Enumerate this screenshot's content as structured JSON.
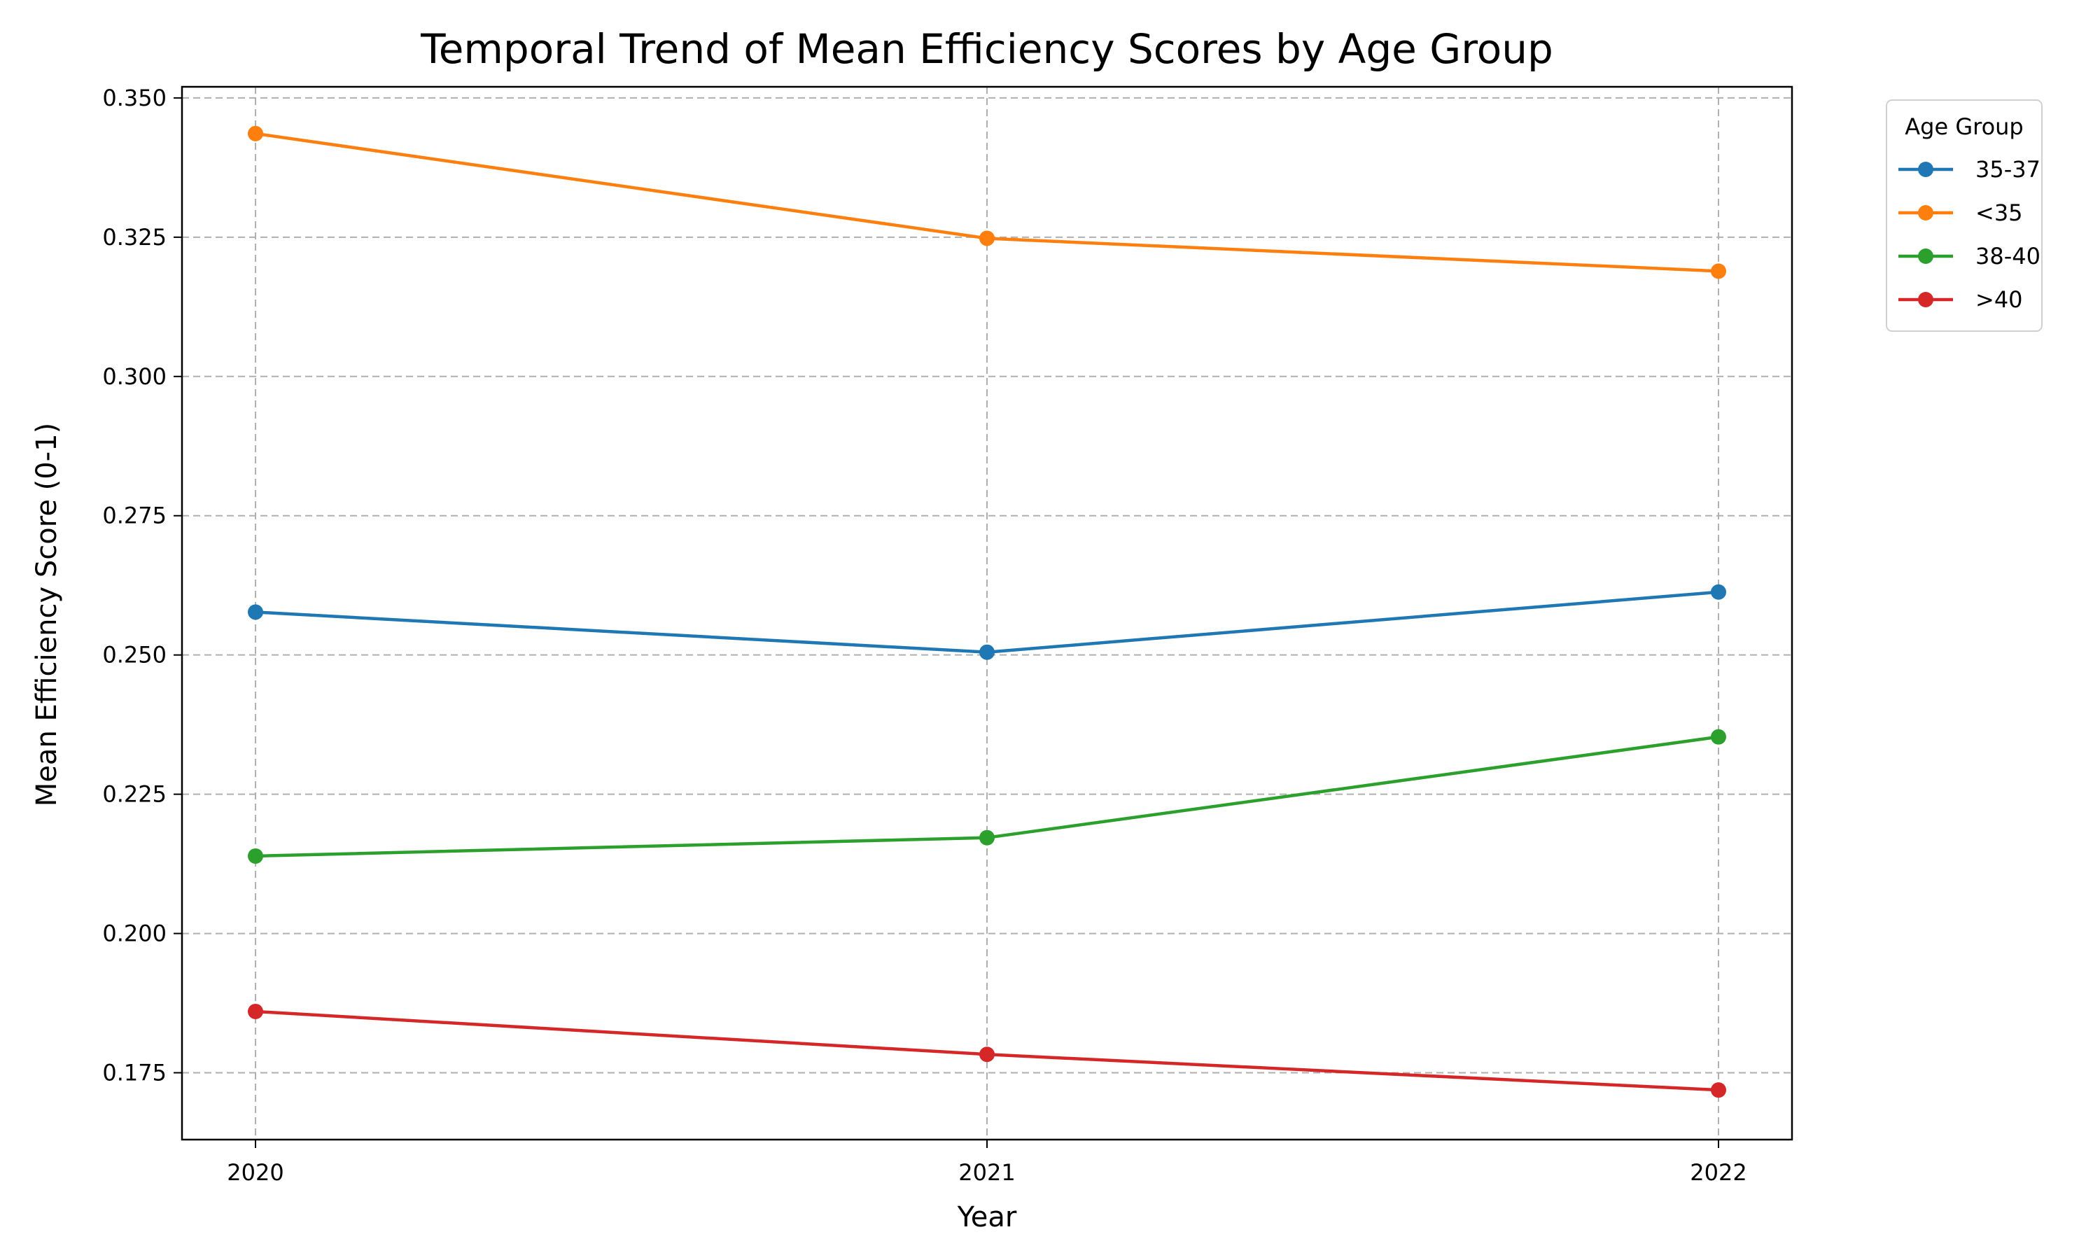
{
  "chart_data": {
    "type": "line",
    "title": "Temporal Trend of Mean Efficiency Scores by Age Group",
    "xlabel": "Year",
    "ylabel": "Mean Efficiency Score (0-1)",
    "x": [
      "2020",
      "2021",
      "2022"
    ],
    "ylim": [
      0.163,
      0.352
    ],
    "yticks": [
      "0.175",
      "0.200",
      "0.225",
      "0.250",
      "0.275",
      "0.300",
      "0.325",
      "0.350"
    ],
    "grid": true,
    "legend": {
      "title": "Age Group",
      "placement": "outside-top-right"
    },
    "series": [
      {
        "name": "35-37",
        "color": "#1f77b4",
        "values": [
          0.2577,
          0.2505,
          0.2613
        ]
      },
      {
        "name": "<35",
        "color": "#ff7f0e",
        "values": [
          0.3436,
          0.3248,
          0.3189
        ]
      },
      {
        "name": "38-40",
        "color": "#2ca02c",
        "values": [
          0.2139,
          0.2172,
          0.2353
        ]
      },
      {
        "name": ">40",
        "color": "#d62728",
        "values": [
          0.186,
          0.1783,
          0.1719
        ]
      }
    ]
  }
}
